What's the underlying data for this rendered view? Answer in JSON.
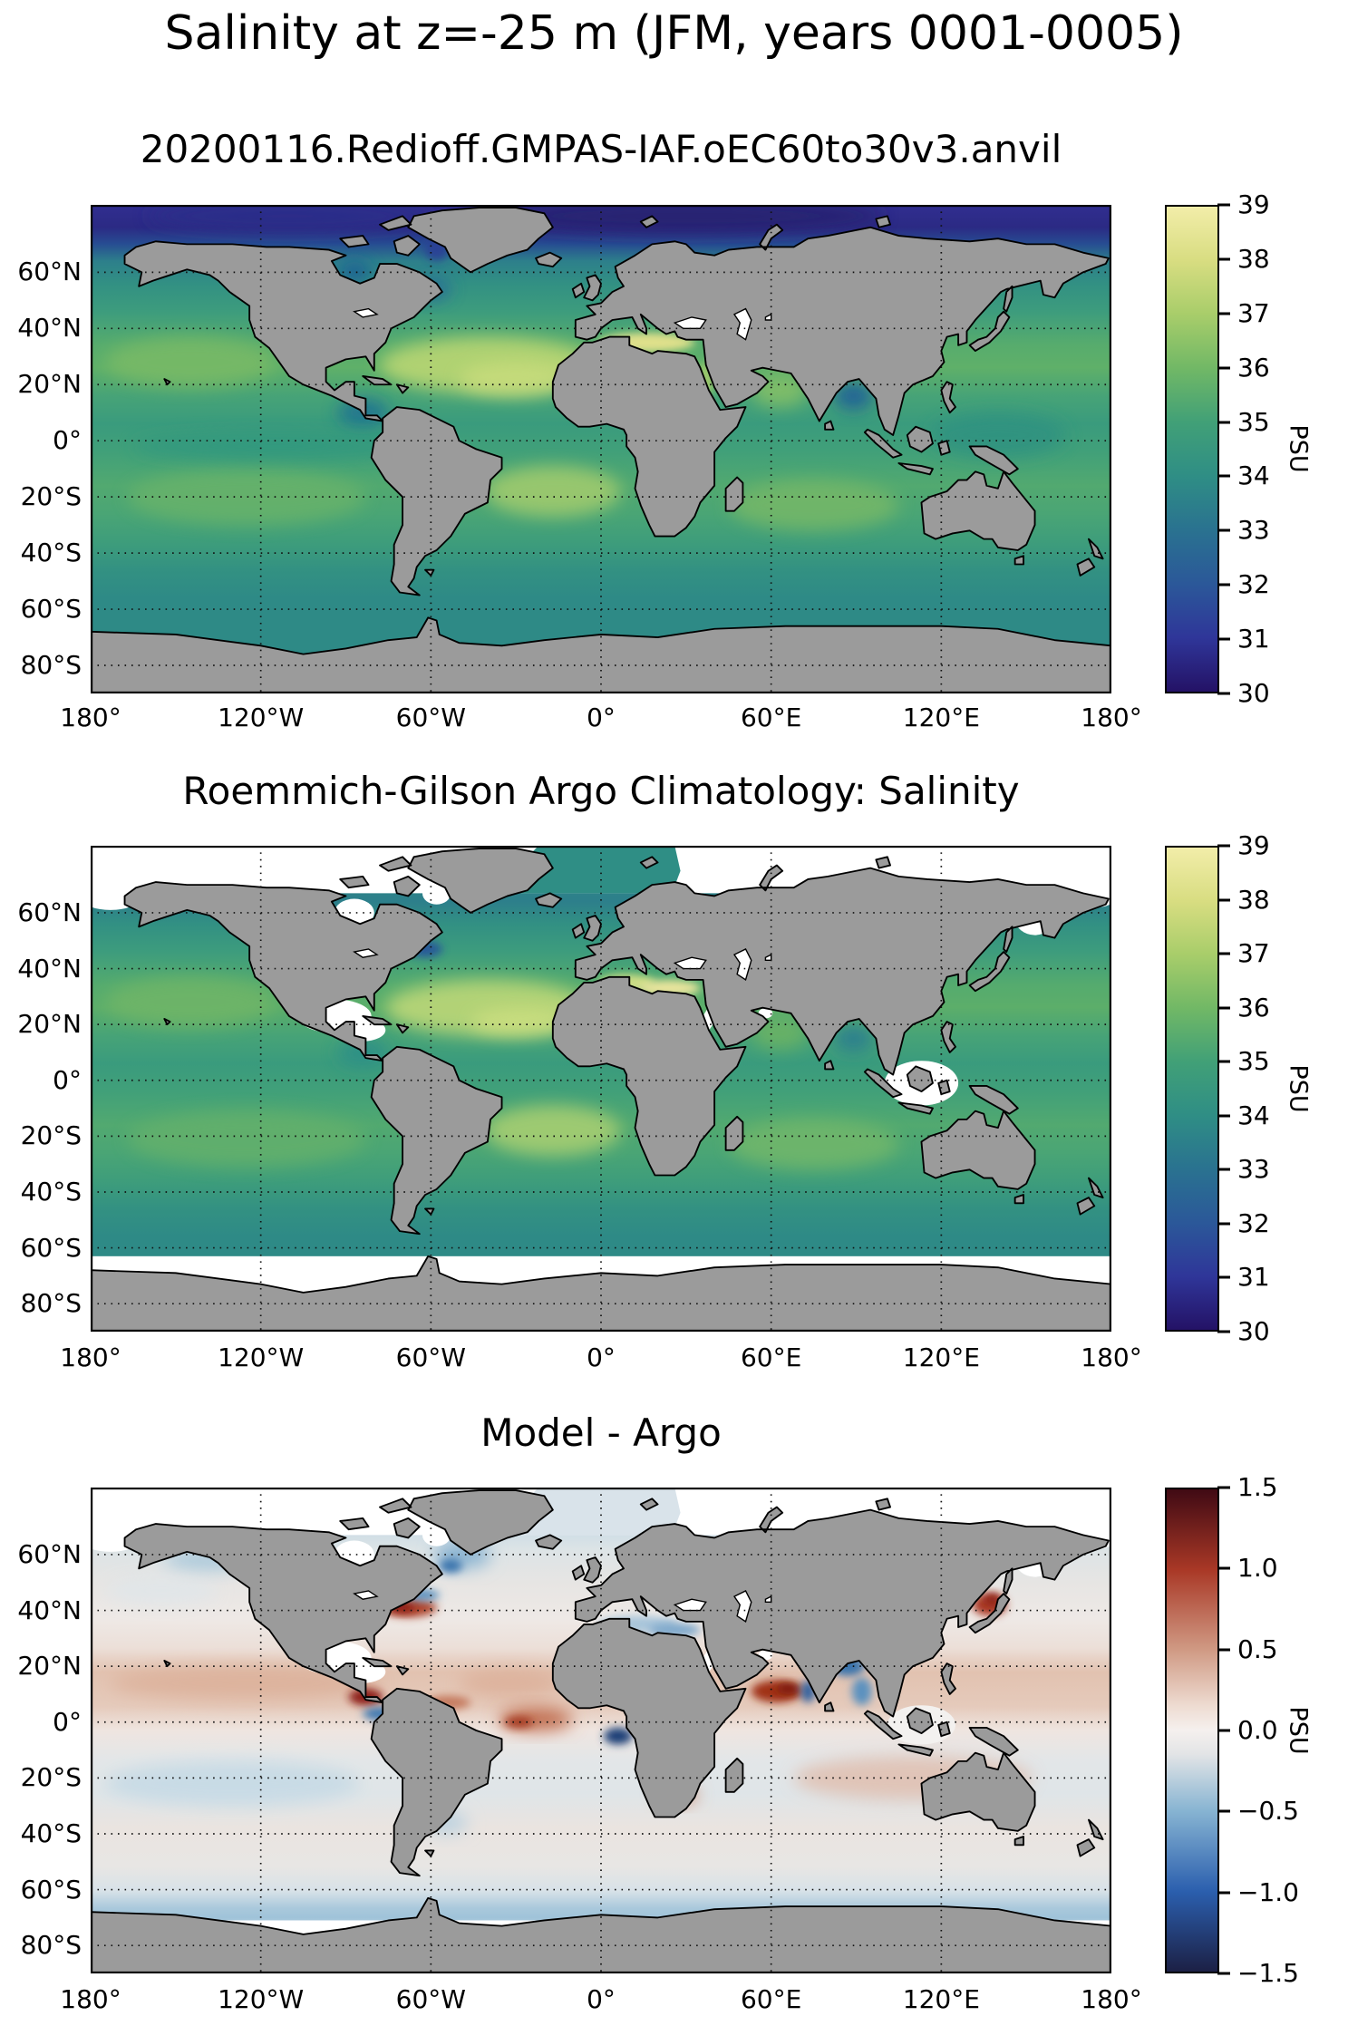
{
  "figure": {
    "suptitle": "Salinity at z=-25 m (JFM, years 0001-0005)"
  },
  "panels": [
    {
      "id": "model",
      "title": "20200116.Redioff.GMPAS-IAF.oEC60to30v3.anvil",
      "units": "PSU",
      "colorbar": {
        "min": 30,
        "max": 39,
        "palette": "haline",
        "ticks": [
          {
            "label": "39",
            "value": 39
          },
          {
            "label": "38",
            "value": 38
          },
          {
            "label": "37",
            "value": 37
          },
          {
            "label": "36",
            "value": 36
          },
          {
            "label": "35",
            "value": 35
          },
          {
            "label": "34",
            "value": 34
          },
          {
            "label": "33",
            "value": 33
          },
          {
            "label": "32",
            "value": 32
          },
          {
            "label": "31",
            "value": 31
          },
          {
            "label": "30",
            "value": 30
          }
        ]
      }
    },
    {
      "id": "argo",
      "title": "Roemmich-Gilson Argo Climatology: Salinity",
      "units": "PSU",
      "colorbar": {
        "min": 30,
        "max": 39,
        "palette": "haline",
        "ticks": [
          {
            "label": "39",
            "value": 39
          },
          {
            "label": "38",
            "value": 38
          },
          {
            "label": "37",
            "value": 37
          },
          {
            "label": "36",
            "value": 36
          },
          {
            "label": "35",
            "value": 35
          },
          {
            "label": "34",
            "value": 34
          },
          {
            "label": "33",
            "value": 33
          },
          {
            "label": "32",
            "value": 32
          },
          {
            "label": "31",
            "value": 31
          },
          {
            "label": "30",
            "value": 30
          }
        ]
      }
    },
    {
      "id": "difference",
      "title": "Model - Argo",
      "units": "PSU",
      "colorbar": {
        "min": -1.5,
        "max": 1.5,
        "palette": "balance",
        "ticks": [
          {
            "label": "1.5",
            "value": 1.5
          },
          {
            "label": "1.0",
            "value": 1.0
          },
          {
            "label": "0.5",
            "value": 0.5
          },
          {
            "label": "0.0",
            "value": 0.0
          },
          {
            "label": "−0.5",
            "value": -0.5
          },
          {
            "label": "−1.0",
            "value": -1.0
          },
          {
            "label": "−1.5",
            "value": -1.5
          }
        ]
      }
    }
  ],
  "axes": {
    "lat_ticks": [
      {
        "label": "60°N",
        "lat": 60
      },
      {
        "label": "40°N",
        "lat": 40
      },
      {
        "label": "20°N",
        "lat": 20
      },
      {
        "label": "0°",
        "lat": 0
      },
      {
        "label": "20°S",
        "lat": -20
      },
      {
        "label": "40°S",
        "lat": -40
      },
      {
        "label": "60°S",
        "lat": -60
      },
      {
        "label": "80°S",
        "lat": -80
      }
    ],
    "lon_ticks": [
      {
        "label": "180°",
        "lon": -180
      },
      {
        "label": "120°W",
        "lon": -120
      },
      {
        "label": "60°W",
        "lon": -60
      },
      {
        "label": "0°",
        "lon": 0
      },
      {
        "label": "60°E",
        "lon": 60
      },
      {
        "label": "120°E",
        "lon": 120
      },
      {
        "label": "180°",
        "lon": 180
      }
    ]
  },
  "colors": {
    "land": "#9b9b9b",
    "coastline": "#000000",
    "no_data": "#ffffff",
    "haline": [
      {
        "v": 30,
        "c": "#241266"
      },
      {
        "v": 31,
        "c": "#2f3699"
      },
      {
        "v": 32,
        "c": "#2b5899"
      },
      {
        "v": 33,
        "c": "#2a7290"
      },
      {
        "v": 34,
        "c": "#2f8e85"
      },
      {
        "v": 35,
        "c": "#41a077"
      },
      {
        "v": 36,
        "c": "#71b866"
      },
      {
        "v": 37,
        "c": "#a8cd6a"
      },
      {
        "v": 38,
        "c": "#d8dd81"
      },
      {
        "v": 39,
        "c": "#f2eda9"
      }
    ],
    "balance": [
      {
        "v": -1.5,
        "c": "#1c2045"
      },
      {
        "v": -1.0,
        "c": "#2b5fae"
      },
      {
        "v": -0.5,
        "c": "#87b4d2"
      },
      {
        "v": -0.15,
        "c": "#e2e4e6"
      },
      {
        "v": 0.0,
        "c": "#f5f0ee"
      },
      {
        "v": 0.15,
        "c": "#eedcd2"
      },
      {
        "v": 0.5,
        "c": "#d09a84"
      },
      {
        "v": 1.0,
        "c": "#a93826"
      },
      {
        "v": 1.5,
        "c": "#400a14"
      }
    ]
  },
  "chart_data": [
    {
      "type": "heatmap",
      "panel": "top",
      "title": "20200116.Redioff.GMPAS-IAF.oEC60to30v3.anvil",
      "variable": "Salinity at z=-25 m",
      "season": "JFM",
      "years": "0001-0005",
      "units": "PSU",
      "colormap": "haline (dark indigo → blue → teal → green → pale yellow)",
      "colorbar_range": [
        30,
        39
      ],
      "colorbar_ticks": [
        30,
        31,
        32,
        33,
        34,
        35,
        36,
        37,
        38,
        39
      ],
      "projection": "equirectangular, lon 180°W–180°E, lat ~84°N–90°S",
      "x_ticks": [
        "180°",
        "120°W",
        "60°W",
        "0°",
        "60°E",
        "120°E",
        "180°"
      ],
      "y_ticks": [
        "60°N",
        "40°N",
        "20°N",
        "0°",
        "20°S",
        "40°S",
        "60°S",
        "80°S"
      ],
      "grid": "dotted black graticule every 20° lat / 60° lon",
      "approx_zonal_mean_psu": {
        "75N": 31.0,
        "60N": 33.2,
        "40N": 34.6,
        "25N": 35.9,
        "0": 34.9,
        "20S": 35.8,
        "40S": 34.6,
        "60S": 34.0,
        "75S": 33.9
      },
      "notable_features": [
        "Arctic Ocean very fresh (30–31 PSU, dark indigo)",
        "Subtropical gyre salinity maxima 36–37 PSU, brightest in Atlantic ~20–30°N and ~10–25°S",
        "Mediterranean Sea hypersaline 37–38 PSU (yellow-green)",
        "Baltic Sea very fresh (~30 PSU, dark indigo)",
        "Bay of Bengal and far-eastern equatorial Pacific fresh (~32 PSU)",
        "Black Sea and Caspian Sea masked white; land gray with black coastlines"
      ]
    },
    {
      "type": "heatmap",
      "panel": "middle",
      "title": "Roemmich-Gilson Argo Climatology: Salinity",
      "variable": "Salinity at z=-25 m",
      "units": "PSU",
      "colormap": "haline (dark indigo → blue → teal → green → pale yellow)",
      "colorbar_range": [
        30,
        39
      ],
      "colorbar_ticks": [
        30,
        31,
        32,
        33,
        34,
        35,
        36,
        37,
        38,
        39
      ],
      "x_ticks": [
        "180°",
        "120°W",
        "60°W",
        "0°",
        "60°E",
        "120°E",
        "180°"
      ],
      "y_ticks": [
        "60°N",
        "40°N",
        "20°N",
        "0°",
        "20°S",
        "40°S",
        "60°S",
        "80°S"
      ],
      "approx_zonal_mean_psu": {
        "60N": 33.4,
        "40N": 34.4,
        "25N": 35.8,
        "0": 35.0,
        "20S": 35.7,
        "40S": 34.7,
        "60S": 34.0
      },
      "notable_features": [
        "No Argo data (white) in Arctic, marginal seas (Hudson Bay, Gulf of Mexico/Caribbean, Sea of Okhotsk, Indonesian seas, Red Sea, Black/Caspian) and south of ~63°S",
        "Teal data patch extends to map top in Nordic Seas between Greenland and Norway",
        "Mediterranean pale yellow 37–38 PSU",
        "Same subtropical maxima pattern as model, Atlantic brightest (~37 PSU)",
        "Fresh dark-blue patch off Newfoundland/Labrador shelf"
      ]
    },
    {
      "type": "heatmap",
      "panel": "bottom",
      "title": "Model - Argo",
      "variable": "Salinity difference at z=-25 m",
      "units": "PSU",
      "colormap": "balance (dark blue → white → dark red)",
      "colorbar_range": [
        -1.5,
        1.5
      ],
      "colorbar_ticks": [
        -1.5,
        -1.0,
        -0.5,
        0.0,
        0.5,
        1.0,
        1.5
      ],
      "x_ticks": [
        "180°",
        "120°W",
        "60°W",
        "0°",
        "60°E",
        "120°E",
        "180°"
      ],
      "y_ticks": [
        "60°N",
        "40°N",
        "20°N",
        "0°",
        "20°S",
        "40°S",
        "60°S",
        "80°S"
      ],
      "notable_features": [
        "Most of the ocean near zero (within ±0.3 PSU, near-white)",
        "Strong salty bias (+1 to +1.5): Gulf Stream along US east coast, Sea of Japan/Kuroshio, western Arabian Sea, eastern tropical Pacific off Panama, equatorial Atlantic",
        "Strong fresh bias (−1 to −1.5): Bay of Bengal coasts, Gulf of Guinea, subpolar North Atlantic south of Greenland, Mediterranean slightly fresh",
        "Light red band ~5–20°N across Pacific/Atlantic; light blue band along ~55–65°S",
        "White no-data regions as in Argo panel"
      ]
    }
  ]
}
